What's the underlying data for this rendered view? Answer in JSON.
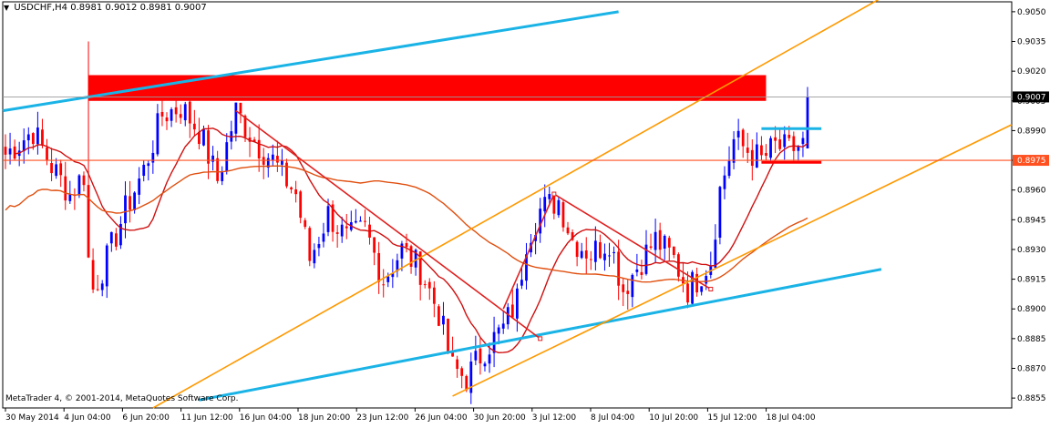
{
  "header": {
    "symbol": "USDCHF,H4",
    "open": "0.8981",
    "high": "0.9012",
    "low": "0.8981",
    "close": "0.9007",
    "collapse_icon": "triangle-down-icon"
  },
  "copyright": "MetaTrader 4, © 2001-2014, MetaQuotes Software Corp.",
  "colors": {
    "background": "#ffffff",
    "bull_candle": "#0000ff",
    "bear_candle": "#ff0000",
    "blue_trendline": "#1ab3e6",
    "orange_channel": "#ff9900",
    "red_lines": "#e02020",
    "ma_fast": "#d01010",
    "ma_slow": "#e05010",
    "zone_fill": "#ff0000"
  },
  "chart_data": {
    "type": "candlestick",
    "ylim": [
      0.885,
      0.9055
    ],
    "y_ticks": [
      "0.9050",
      "0.9035",
      "0.9020",
      "0.9005",
      "0.8990",
      "0.8975",
      "0.8960",
      "0.8945",
      "0.8930",
      "0.8915",
      "0.8900",
      "0.8885",
      "0.8870",
      "0.8855"
    ],
    "x_tick_labels": [
      "30 May 2014",
      "4 Jun 04:00",
      "6 Jun 20:00",
      "11 Jun 12:00",
      "16 Jun 04:00",
      "18 Jun 20:00",
      "23 Jun 12:00",
      "26 Jun 04:00",
      "30 Jun 20:00",
      "3 Jul 12:00",
      "8 Jul 04:00",
      "10 Jul 20:00",
      "15 Jul 12:00",
      "18 Jul 04:00"
    ],
    "current_price": "0.9007",
    "level_price": "0.8975",
    "anchor_closes": [
      [
        0,
        0.8978
      ],
      [
        6,
        0.899
      ],
      [
        10,
        0.8972
      ],
      [
        14,
        0.8958
      ],
      [
        17,
        0.8968
      ],
      [
        18,
        0.8925
      ],
      [
        19,
        0.891
      ],
      [
        22,
        0.8925
      ],
      [
        26,
        0.895
      ],
      [
        30,
        0.897
      ],
      [
        34,
        0.8998
      ],
      [
        38,
        0.9002
      ],
      [
        42,
        0.899
      ],
      [
        46,
        0.8965
      ],
      [
        50,
        0.9
      ],
      [
        54,
        0.8985
      ],
      [
        58,
        0.8975
      ],
      [
        60,
        0.8968
      ],
      [
        63,
        0.8958
      ],
      [
        66,
        0.8925
      ],
      [
        70,
        0.8948
      ],
      [
        74,
        0.8935
      ],
      [
        78,
        0.894
      ],
      [
        82,
        0.8915
      ],
      [
        86,
        0.893
      ],
      [
        90,
        0.892
      ],
      [
        94,
        0.8898
      ],
      [
        97,
        0.887
      ],
      [
        100,
        0.8865
      ],
      [
        104,
        0.888
      ],
      [
        108,
        0.889
      ],
      [
        111,
        0.8905
      ],
      [
        113,
        0.8935
      ],
      [
        116,
        0.895
      ],
      [
        120,
        0.8955
      ],
      [
        123,
        0.8935
      ],
      [
        127,
        0.8928
      ],
      [
        131,
        0.8935
      ],
      [
        134,
        0.891
      ],
      [
        138,
        0.8925
      ],
      [
        141,
        0.8935
      ],
      [
        145,
        0.8925
      ],
      [
        148,
        0.891
      ],
      [
        150,
        0.8915
      ],
      [
        153,
        0.8925
      ],
      [
        155,
        0.896
      ],
      [
        158,
        0.8985
      ],
      [
        161,
        0.898
      ],
      [
        164,
        0.8975
      ],
      [
        167,
        0.8982
      ],
      [
        170,
        0.898
      ],
      [
        173,
        0.8983
      ],
      [
        174,
        0.9007
      ]
    ],
    "red_zone": [
      0.9005,
      0.9018
    ],
    "small_blue_level": 0.8991,
    "small_red_level": 0.8974
  }
}
